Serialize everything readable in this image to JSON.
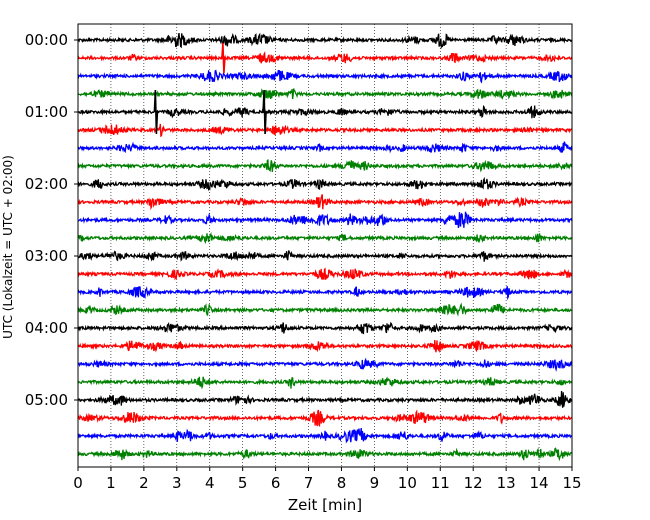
{
  "chart_data": {
    "type": "line",
    "title": "",
    "xlabel": "Zeit  [min]",
    "ylabel": "UTC (Lokalzeit = UTC + 02:00)",
    "xlim": [
      0,
      15
    ],
    "x_ticks": [
      0,
      1,
      2,
      3,
      4,
      5,
      6,
      7,
      8,
      9,
      10,
      11,
      12,
      13,
      14,
      15
    ],
    "y_tick_labels": [
      "00:00",
      "01:00",
      "02:00",
      "03:00",
      "04:00",
      "05:00"
    ],
    "y_tick_rows": [
      0,
      4,
      8,
      12,
      16,
      20
    ],
    "row_minutes": 15,
    "trace_count": 24,
    "trace_color_cycle": [
      "#000000",
      "#ff0000",
      "#0000ff",
      "#008000"
    ],
    "grid": "vertical dotted at each minute",
    "notable_spikes": [
      {
        "row": 1,
        "minute": 4.4
      },
      {
        "row": 4,
        "minute": 2.35
      },
      {
        "row": 4,
        "minute": 5.65
      }
    ]
  }
}
